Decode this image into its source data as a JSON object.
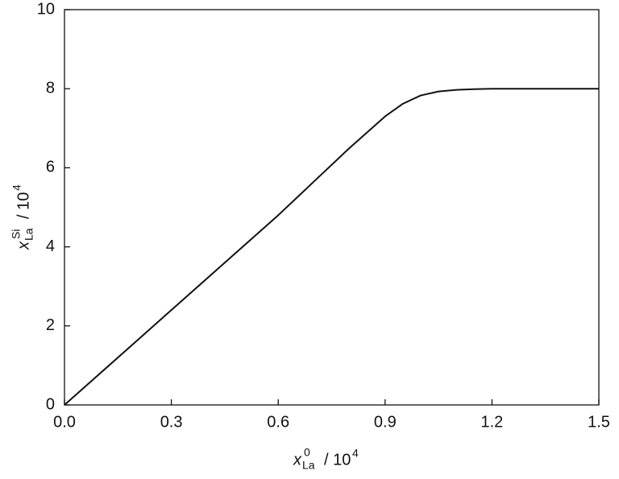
{
  "chart_data": {
    "type": "line",
    "xlabel": {
      "symbol": "x",
      "superscript": "0",
      "subscript": "La",
      "unit": "/ 10",
      "unit_exponent": "4"
    },
    "ylabel": {
      "symbol": "x",
      "superscript": "Si",
      "subscript": "La",
      "unit": "/ 10",
      "unit_exponent": "4"
    },
    "x": [
      0,
      0.1,
      0.2,
      0.3,
      0.4,
      0.5,
      0.6,
      0.7,
      0.8,
      0.85,
      0.9,
      0.95,
      1.0,
      1.05,
      1.1,
      1.15,
      1.2,
      1.3,
      1.4,
      1.5
    ],
    "series": [
      {
        "color": "#111111",
        "values": [
          0,
          0.8,
          1.6,
          2.4,
          3.2,
          4.0,
          4.8,
          5.65,
          6.5,
          6.9,
          7.3,
          7.62,
          7.83,
          7.93,
          7.97,
          7.99,
          8.0,
          8.0,
          8.0,
          8.0
        ]
      }
    ],
    "xlim": [
      0,
      1.5
    ],
    "xticks": [
      {
        "value": 0,
        "label": "0.0"
      },
      0.3,
      0.6,
      0.9,
      1.2,
      1.5
    ],
    "ylim": [
      0,
      10
    ],
    "yticks": [
      0,
      2,
      4,
      6,
      8,
      10
    ]
  }
}
